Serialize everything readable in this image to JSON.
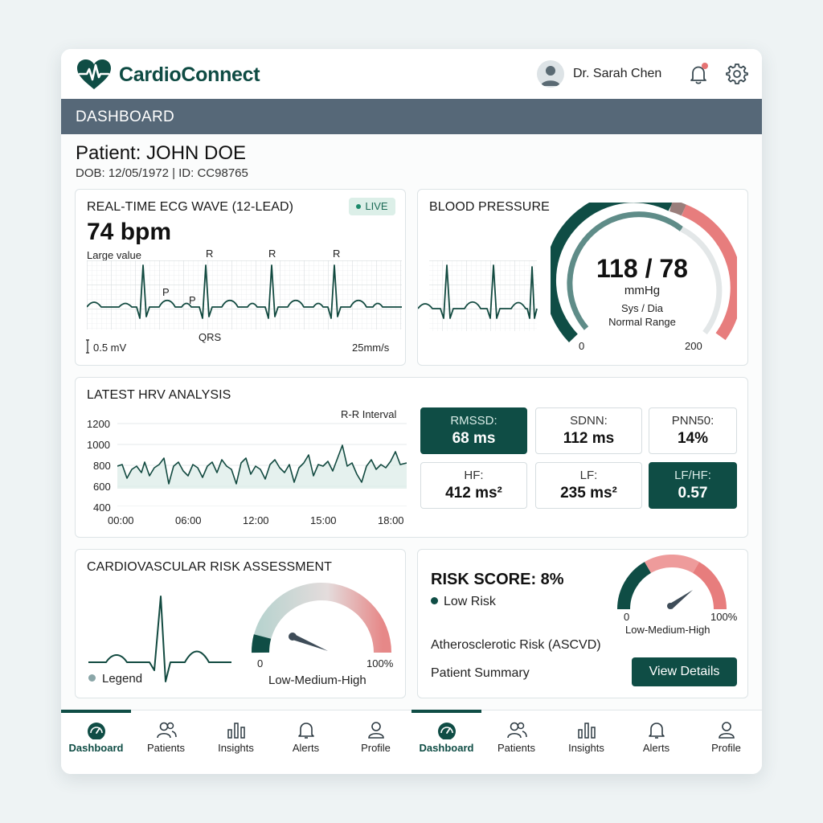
{
  "app": {
    "title": "CardioConnect"
  },
  "user": {
    "name": "Dr. Sarah Chen"
  },
  "dashboard": {
    "title": "DASHBOARD"
  },
  "patient": {
    "name": "Patient: JOHN DOE",
    "meta": "DOB: 12/05/1972 | ID: CC98765"
  },
  "ecg": {
    "title": "REAL-TIME ECG WAVE (12-LEAD)",
    "live_label": "LIVE",
    "bpm": "74 bpm",
    "caption": "Large value",
    "label_r": "R",
    "label_p": "P",
    "label_qrs": "QRS",
    "scale": "0.5 mV",
    "speed": "25mm/s"
  },
  "bp": {
    "title": "BLOOD PRESSURE",
    "value": "118 / 78",
    "unit": "mmHg",
    "sub1": "Sys / Dia",
    "sub2": "Normal Range",
    "min": "0",
    "max": "200"
  },
  "hrv": {
    "title": "LATEST HRV ANALYSIS",
    "series_label": "R-R Interval",
    "y_ticks": [
      "1200",
      "1000",
      "800",
      "600",
      "400"
    ],
    "x_ticks": [
      "00:00",
      "06:00",
      "12:00",
      "15:00",
      "18:00"
    ],
    "metrics": [
      {
        "label": "RMSSD:",
        "value": "68 ms",
        "highlight": true
      },
      {
        "label": "SDNN:",
        "value": "112 ms",
        "highlight": false
      },
      {
        "label": "PNN50:",
        "value": "14%",
        "highlight": false
      },
      {
        "label": "HF:",
        "value": "412 ms²",
        "highlight": false
      },
      {
        "label": "LF:",
        "value": "235 ms²",
        "highlight": false
      },
      {
        "label": "LF/HF:",
        "value": "0.57",
        "highlight": true
      }
    ]
  },
  "risk": {
    "title": "CARDIOVASCULAR RISK ASSESSMENT",
    "legend": "Legend",
    "gauge_min": "0",
    "gauge_max": "100%",
    "gauge_label": "Low-Medium-High"
  },
  "risk_score": {
    "score": "RISK SCORE: 8%",
    "level": "Low Risk",
    "gauge_min": "0",
    "gauge_max": "100%",
    "gauge_label": "Low-Medium-High",
    "ascvd": "Atherosclerotic Risk (ASCVD)",
    "summary": "Patient Summary",
    "button": "View Details"
  },
  "nav": {
    "items": [
      {
        "label": "Dashboard",
        "icon": "dashboard-gauge-icon"
      },
      {
        "label": "Patients",
        "icon": "patients-icon"
      },
      {
        "label": "Insights",
        "icon": "insights-bar-icon"
      },
      {
        "label": "Alerts",
        "icon": "bell-icon"
      },
      {
        "label": "Profile",
        "icon": "profile-icon"
      }
    ]
  },
  "colors": {
    "brand": "#0f4d45",
    "header": "#566878",
    "alert": "#e57373"
  }
}
